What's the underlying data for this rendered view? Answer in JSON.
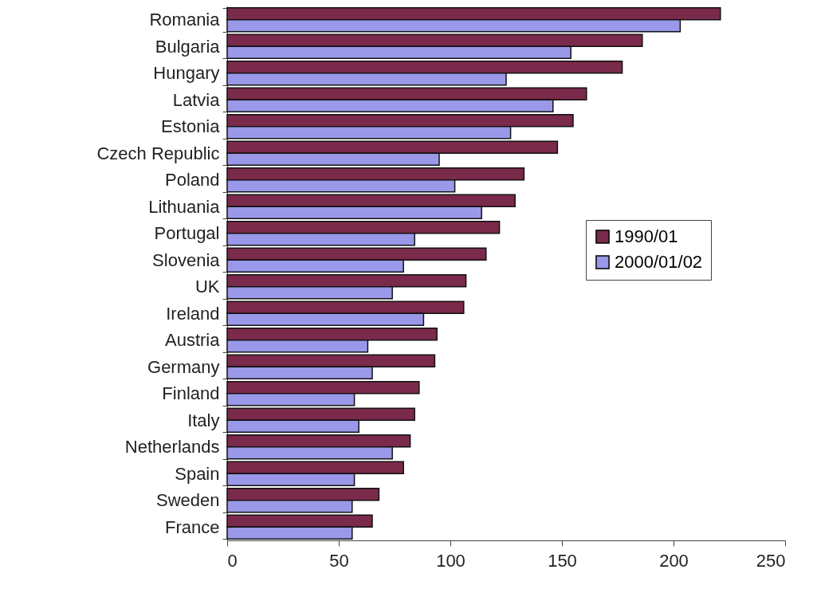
{
  "chart_data": {
    "type": "bar",
    "orientation": "horizontal",
    "categories": [
      "Romania",
      "Bulgaria",
      "Hungary",
      "Latvia",
      "Estonia",
      "Czech Republic",
      "Poland",
      "Lithuania",
      "Portugal",
      "Slovenia",
      "UK",
      "Ireland",
      "Austria",
      "Germany",
      "Finland",
      "Italy",
      "Netherlands",
      "Spain",
      "Sweden",
      "France"
    ],
    "series": [
      {
        "name": "1990/01",
        "color": "#7a2a4a",
        "values": [
          221,
          186,
          177,
          161,
          155,
          148,
          133,
          129,
          122,
          116,
          107,
          106,
          94,
          93,
          86,
          84,
          82,
          79,
          68,
          65
        ]
      },
      {
        "name": "2000/01/02",
        "color": "#9a98e8",
        "values": [
          203,
          154,
          125,
          146,
          127,
          95,
          102,
          114,
          84,
          79,
          74,
          88,
          63,
          65,
          57,
          59,
          74,
          57,
          56,
          56
        ]
      }
    ],
    "xlim": [
      0,
      250
    ],
    "xticks": [
      0,
      50,
      100,
      150,
      200,
      250
    ],
    "grid": false,
    "legend": "right"
  }
}
